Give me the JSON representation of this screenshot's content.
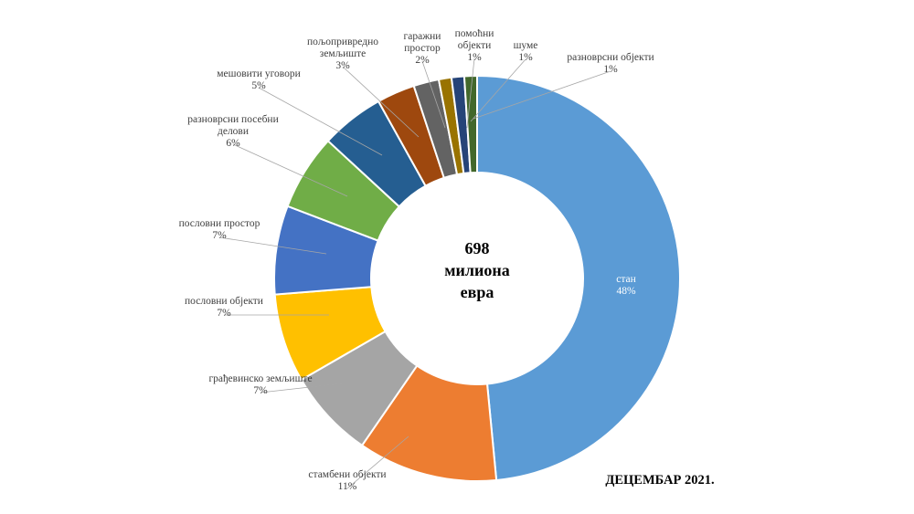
{
  "chart_data": {
    "type": "pie",
    "donut": true,
    "center_text": [
      "698",
      "милиона",
      "евра"
    ],
    "footer": "ДЕЦЕМБАР 2021.",
    "slices": [
      {
        "label": "стан",
        "value": 48,
        "value_text": "48%",
        "color": "#5B9BD5"
      },
      {
        "label": "стамбени објекти",
        "value": 11,
        "value_text": "11%",
        "color": "#ED7D31"
      },
      {
        "label": "грађевинско земљиште",
        "value": 7,
        "value_text": "7%",
        "color": "#A5A5A5"
      },
      {
        "label": "пословни објекти",
        "value": 7,
        "value_text": "7%",
        "color": "#FFC000"
      },
      {
        "label": "пословни простор",
        "value": 7,
        "value_text": "7%",
        "color": "#4472C4"
      },
      {
        "label": "разноврсни посебни делови",
        "value": 6,
        "value_text": "6%",
        "color": "#70AD47"
      },
      {
        "label": "мешовити уговори",
        "value": 5,
        "value_text": "5%",
        "color": "#255E91"
      },
      {
        "label": "пољопривредно земљиште",
        "value": 3,
        "value_text": "3%",
        "color": "#9E480E"
      },
      {
        "label": "гаражни простор",
        "value": 2,
        "value_text": "2%",
        "color": "#636363"
      },
      {
        "label": "помоћни објекти",
        "value": 1,
        "value_text": "1%",
        "color": "#997300"
      },
      {
        "label": "шуме",
        "value": 1,
        "value_text": "1%",
        "color": "#264478"
      },
      {
        "label": "разноврсни објекти",
        "value": 1,
        "value_text": "1%",
        "color": "#43682B"
      }
    ]
  }
}
